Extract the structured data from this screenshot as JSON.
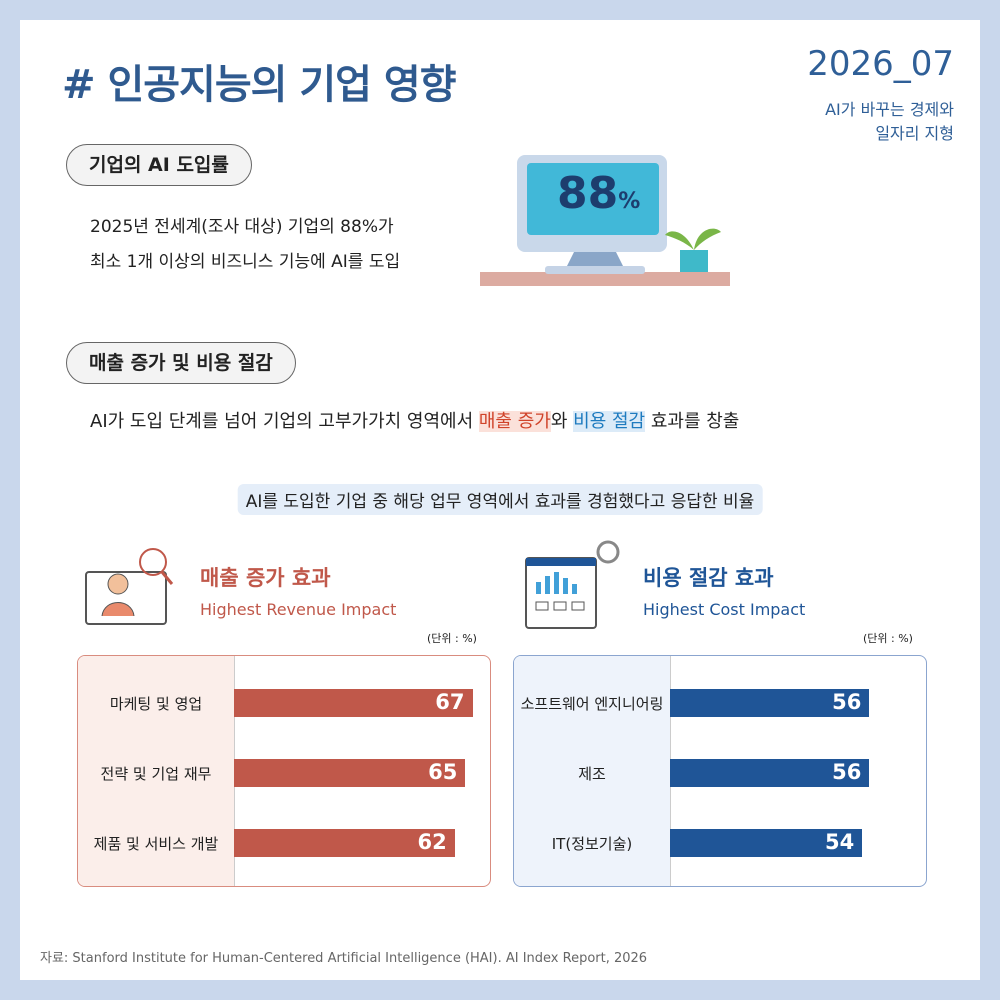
{
  "header": {
    "title": "# 인공지능의 기업 영향",
    "issue": "2026_07",
    "subtitle": [
      "AI가 바꾸는 경제와",
      "일자리 지형"
    ]
  },
  "sections": [
    {
      "heading": "기업의 AI 도입률",
      "body": [
        "2025년 전세계(조사 대상) 기업의 88%가",
        "최소 1개 이상의 비즈니스 기능에 AI를 도입"
      ]
    },
    {
      "heading": "매출 증가 및 비용 절감",
      "body": [
        "AI가 도입 단계를 넘어 기업의 고부가가치 영역에서 ",
        "매출 증가",
        "와 ",
        "비용 절감",
        " 효과를 창출"
      ]
    }
  ],
  "monitor": {
    "value": "88",
    "unit": "%"
  },
  "chart_caption": "AI를 도입한 기업 중 해당 업무 영역에서 효과를 경험했다고 응답한 비율",
  "chart_data": [
    {
      "type": "bar",
      "orientation": "horizontal",
      "title": "매출 증가 효과",
      "subtitle": "Highest Revenue Impact",
      "unit_note": "(단위 : %)",
      "categories": [
        "마케팅 및 영업",
        "전략 및 기업 재무",
        "제품 및 서비스 개발"
      ],
      "values": [
        67,
        65,
        62
      ],
      "color": "#c0584a"
    },
    {
      "type": "bar",
      "orientation": "horizontal",
      "title": "비용 절감 효과",
      "subtitle": "Highest Cost Impact",
      "unit_note": "(단위 : %)",
      "categories": [
        "소프트웨어 엔지니어링",
        "제조",
        "IT(정보기술)"
      ],
      "values": [
        56,
        56,
        54
      ],
      "color": "#1f5597"
    }
  ],
  "source": "자료: Stanford Institute for Human-Centered Artificial Intelligence (HAI). AI Index Report, 2026"
}
